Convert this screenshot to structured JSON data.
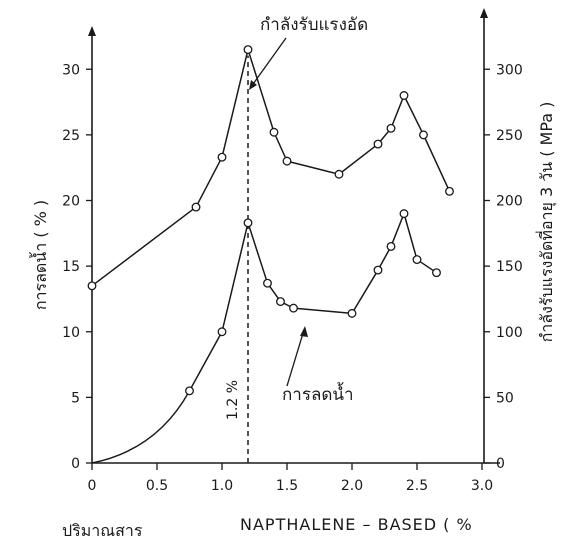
{
  "chart_data": {
    "type": "line",
    "x_ticks": [
      "0",
      "0.5",
      "1.0",
      "1.5",
      "2.0",
      "2.5",
      "3.0"
    ],
    "xlim": [
      0,
      3.0
    ],
    "left_axis": {
      "label": "การลดน้ำ ( % )",
      "ylim": [
        0,
        32
      ],
      "ticks": [
        "0",
        "5",
        "10",
        "15",
        "20",
        "25",
        "30"
      ]
    },
    "right_axis": {
      "label": "กำลังรับแรงอัดที่อายุ 3 วัน ( MPa )",
      "ylim": [
        0,
        320
      ],
      "ticks": [
        "0",
        "50",
        "100",
        "150",
        "200",
        "250",
        "300"
      ]
    },
    "series": [
      {
        "name": "กำลังรับแรงอัด",
        "axis": "left",
        "x": [
          0,
          0.8,
          1.0,
          1.2,
          1.4,
          1.5,
          1.9,
          2.2,
          2.3,
          2.4,
          2.55,
          2.75
        ],
        "y": [
          13.5,
          19.5,
          23.3,
          31.5,
          25.2,
          23.0,
          22.0,
          24.3,
          25.5,
          28.0,
          25.0,
          20.7
        ]
      },
      {
        "name": "การลดน้ำ",
        "axis": "left",
        "x": [
          0.75,
          1.0,
          1.2,
          1.35,
          1.45,
          1.55,
          2.0,
          2.2,
          2.3,
          2.4,
          2.5,
          2.65
        ],
        "y": [
          5.5,
          10.0,
          18.3,
          13.7,
          12.3,
          11.8,
          11.4,
          14.7,
          16.5,
          19.0,
          15.5,
          14.5
        ]
      }
    ],
    "reference_x": 1.2,
    "annotations": {
      "strength_label": "กำลังรับแรงอัด",
      "water_label": "การลดน้ำ",
      "dose_label": "1.2 %"
    },
    "x_label_left": "ปริมาณสาร",
    "x_label_right": "NAPTHALENE – BASED ( %"
  },
  "colors": {
    "ink": "#1a1a1a",
    "marker_fill": "#ffffff"
  }
}
